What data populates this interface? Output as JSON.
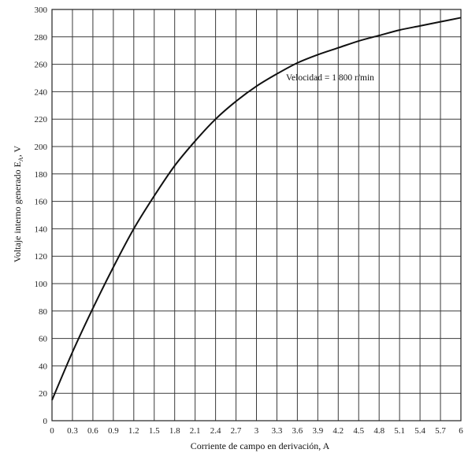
{
  "chart_data": {
    "type": "line",
    "xlabel": "Corriente de campo en derivación, A",
    "ylabel": "Voltaje interno generado E",
    "ylabel_sub": "A",
    "ylabel_unit": ", V",
    "annotation": "Velocidad = 1 800 r/min",
    "xlim": [
      0,
      6
    ],
    "ylim": [
      0,
      300
    ],
    "grid": true,
    "x_ticks": [
      0,
      0.3,
      0.6,
      0.9,
      1.2,
      1.5,
      1.8,
      2.1,
      2.4,
      2.7,
      3,
      3.3,
      3.6,
      3.9,
      4.2,
      4.5,
      4.8,
      5.1,
      5.4,
      5.7,
      6
    ],
    "x_tick_labels": [
      "0",
      "0.3",
      "0.6",
      "0.9",
      "1.2",
      "1.5",
      "1.8",
      "2.1",
      "2.4",
      "2.7",
      "3",
      "3.3",
      "3.6",
      "3.9",
      "4.2",
      "4.5",
      "4.8",
      "5.1",
      "5.4",
      "5.7",
      "6"
    ],
    "y_ticks": [
      0,
      20,
      40,
      60,
      80,
      100,
      120,
      140,
      160,
      180,
      200,
      220,
      240,
      260,
      280,
      300
    ],
    "y_tick_labels": [
      "0",
      "20",
      "40",
      "60",
      "80",
      "100",
      "120",
      "140",
      "160",
      "180",
      "200",
      "220",
      "240",
      "260",
      "280",
      "300"
    ],
    "series": [
      {
        "x": [
          0,
          0.3,
          0.6,
          0.9,
          1.2,
          1.5,
          1.8,
          2.1,
          2.4,
          2.7,
          3.0,
          3.3,
          3.6,
          3.9,
          4.2,
          4.5,
          4.8,
          5.1,
          5.4,
          5.7,
          6.0
        ],
        "y": [
          15,
          50,
          82,
          112,
          140,
          164,
          186,
          204,
          220,
          233,
          244,
          253,
          261,
          267,
          272,
          277,
          281,
          285,
          288,
          291,
          294
        ]
      }
    ]
  }
}
